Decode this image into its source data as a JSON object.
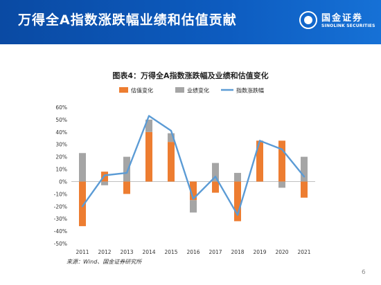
{
  "header": {
    "title": "万得全A指数涨跌幅业绩和估值贡献",
    "logo_cn": "国金证券",
    "logo_en": "SINOLINK SECURITIES"
  },
  "chart_title": "图表4：万得全A指数涨跌幅及业绩和估值变化",
  "source": "来源：Wind、国金证券研究所",
  "page_number": "6",
  "colors": {
    "header_bg": "#0d5cc0",
    "valuation": "#ed7d31",
    "earnings": "#a5a5a5",
    "index_line": "#5b9bd5"
  },
  "chart_data": {
    "type": "bar",
    "categories": [
      "2011",
      "2012",
      "2013",
      "2014",
      "2015",
      "2016",
      "2017",
      "2018",
      "2019",
      "2020",
      "2021"
    ],
    "ylim": [
      -0.5,
      0.6
    ],
    "yticks": [
      -0.5,
      -0.4,
      -0.3,
      -0.2,
      -0.1,
      0,
      0.1,
      0.2,
      0.3,
      0.4,
      0.5,
      0.6
    ],
    "ytick_labels": [
      "-50%",
      "-40%",
      "-30%",
      "-20%",
      "-10%",
      "0%",
      "10%",
      "20%",
      "30%",
      "40%",
      "50%",
      "60%"
    ],
    "legend_position": "top",
    "series": [
      {
        "name": "估值变化",
        "type": "bar",
        "values": [
          -0.36,
          0.08,
          -0.1,
          0.4,
          0.32,
          -0.15,
          -0.09,
          -0.32,
          0.33,
          0.33,
          -0.13
        ]
      },
      {
        "name": "业绩变化",
        "type": "bar",
        "values": [
          0.23,
          -0.03,
          0.2,
          0.1,
          0.07,
          -0.1,
          0.15,
          0.07,
          0.0,
          -0.05,
          0.2
        ]
      },
      {
        "name": "指数涨跌幅",
        "type": "line",
        "values": [
          -0.2,
          0.05,
          0.07,
          0.53,
          0.41,
          -0.14,
          0.04,
          -0.27,
          0.33,
          0.26,
          0.04
        ]
      }
    ]
  }
}
